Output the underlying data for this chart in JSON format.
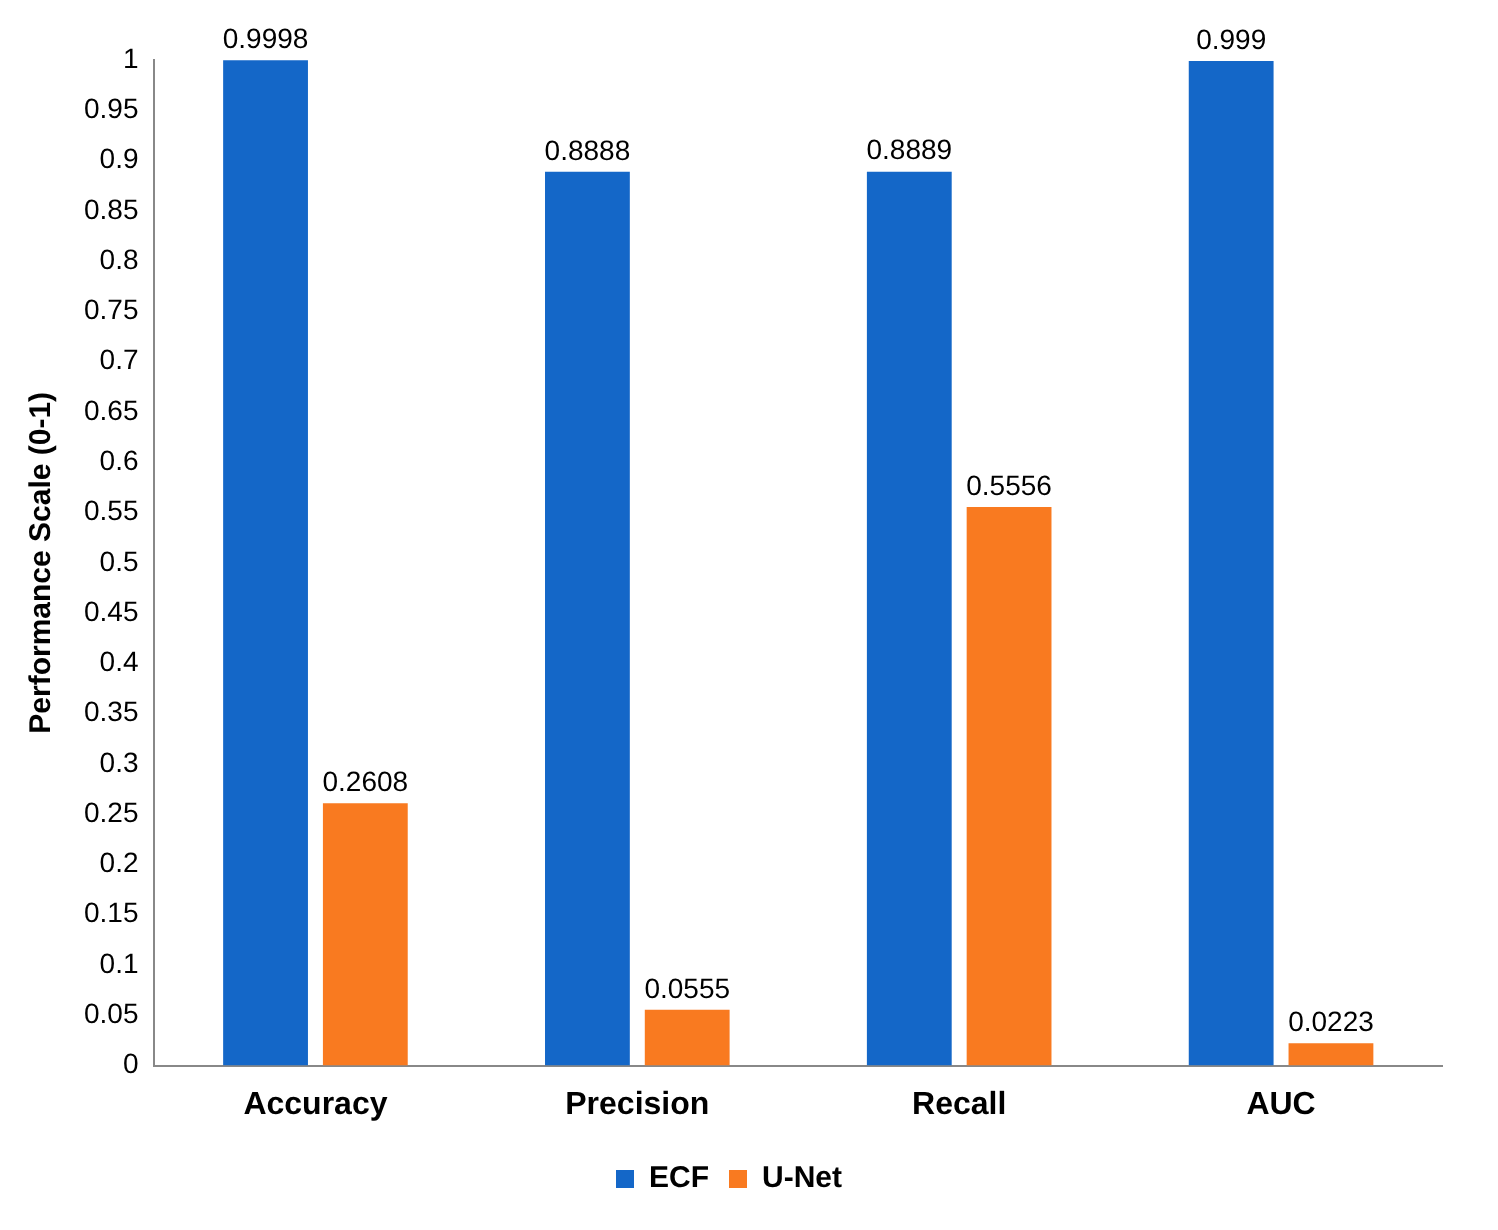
{
  "chart_data": {
    "type": "bar",
    "ylabel": "Performance Scale (0-1)",
    "categories": [
      "Accuracy",
      "Precision",
      "Recall",
      "AUC"
    ],
    "series": [
      {
        "name": "ECF",
        "color": "#1467c8",
        "values": [
          0.9998,
          0.8888,
          0.8889,
          0.999
        ]
      },
      {
        "name": "U-Net",
        "color": "#f97a20",
        "values": [
          0.2608,
          0.0555,
          0.5556,
          0.0223
        ]
      }
    ],
    "ylim": [
      0,
      1
    ],
    "yticks": [
      0,
      0.05,
      0.1,
      0.15,
      0.2,
      0.25,
      0.3,
      0.35,
      0.4,
      0.45,
      0.5,
      0.55,
      0.6,
      0.65,
      0.7,
      0.75,
      0.8,
      0.85,
      0.9,
      0.95,
      1
    ],
    "data_labels": true,
    "legend": "bottom",
    "grid": false
  }
}
